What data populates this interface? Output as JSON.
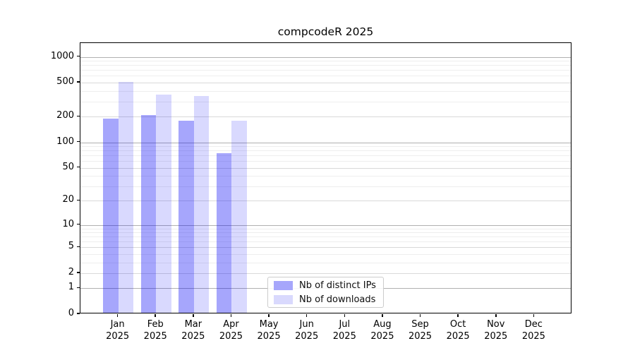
{
  "figure": {
    "title": "compcodeR 2025"
  },
  "chart_data": {
    "type": "bar",
    "title": "compcodeR 2025",
    "xlabel": "",
    "ylabel": "",
    "x_categories": [
      "Jan",
      "Feb",
      "Mar",
      "Apr",
      "May",
      "Jun",
      "Jul",
      "Aug",
      "Sep",
      "Oct",
      "Nov",
      "Dec"
    ],
    "x_year": "2025",
    "series": [
      {
        "name": "Nb of distinct IPs",
        "color": "rgba(0,0,245,0.35)",
        "swatch_color": "#a6a6fb",
        "values": [
          184,
          200,
          172,
          71,
          null,
          null,
          null,
          null,
          null,
          null,
          null,
          null
        ]
      },
      {
        "name": "Nb of downloads",
        "color": "rgba(0,0,245,0.15)",
        "swatch_color": "#d9d9fd",
        "values": [
          494,
          349,
          335,
          174,
          null,
          null,
          null,
          null,
          null,
          null,
          null,
          null
        ]
      }
    ],
    "yscale": "log1p",
    "ylim": [
      0,
      1450
    ],
    "ytick_values": [
      0,
      1,
      2,
      5,
      10,
      20,
      50,
      100,
      200,
      500,
      1000
    ],
    "ytick_labels": [
      "0",
      "1",
      "2",
      "5",
      "10",
      "20",
      "50",
      "100",
      "200",
      "500",
      "1000"
    ],
    "major_gridline_values": [
      1,
      10,
      100,
      1000
    ],
    "minor_gridline_values": [
      3,
      4,
      6,
      7,
      8,
      9,
      30,
      40,
      60,
      70,
      80,
      90,
      300,
      400,
      600,
      700,
      800,
      900
    ],
    "grid": "on",
    "legend_position": "lower-center-inside"
  }
}
